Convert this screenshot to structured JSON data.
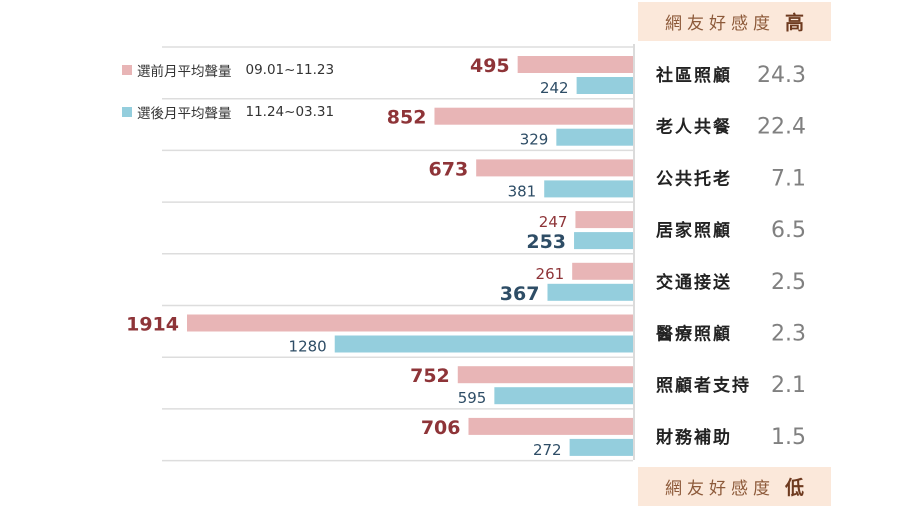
{
  "header": {
    "label": "網友好感度",
    "level": "高"
  },
  "footer": {
    "label": "網友好感度",
    "level": "低"
  },
  "chart_data": {
    "type": "bar",
    "orientation": "horizontal",
    "categories": [
      "社區照顧",
      "老人共餐",
      "公共托老",
      "居家照顧",
      "交通接送",
      "醫療照顧",
      "照顧者支持",
      "財務補助"
    ],
    "favorability": [
      "24.3",
      "22.4",
      "7.1",
      "6.5",
      "2.5",
      "2.3",
      "2.1",
      "1.5"
    ],
    "series": [
      {
        "name": "選前月平均聲量",
        "period": "09.01~11.23",
        "color": "#e8b5b6",
        "values": [
          495,
          852,
          673,
          247,
          261,
          1914,
          752,
          706
        ]
      },
      {
        "name": "選後月平均聲量",
        "period": "11.24~03.31",
        "color": "#94cedd",
        "values": [
          242,
          329,
          381,
          253,
          367,
          1280,
          595,
          272
        ]
      }
    ],
    "xlim": [
      0,
      1914
    ],
    "emphasis": [
      0,
      0,
      0,
      1,
      1,
      0,
      0,
      0
    ],
    "label_colors": {
      "before": "#8e3438",
      "after": "#2e4d66",
      "category": "#222222",
      "score": "#808080"
    }
  }
}
